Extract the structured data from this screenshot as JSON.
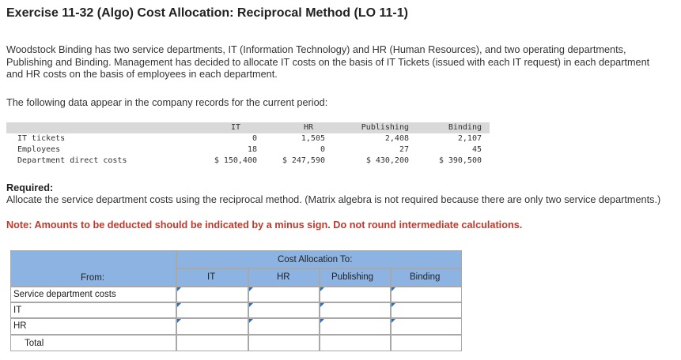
{
  "title": "Exercise 11-32 (Algo) Cost Allocation: Reciprocal Method (LO 11-1)",
  "intro": "Woodstock Binding has two service departments, IT (Information Technology) and HR (Human Resources), and two operating departments, Publishing and Binding. Management has decided to allocate IT costs on the basis of IT Tickets (issued with each IT request) in each department and HR costs on the basis of employees in each department.",
  "data_intro": "The following data appear in the company records for the current period:",
  "data_table": {
    "headers": [
      "IT",
      "HR",
      "Publishing",
      "Binding"
    ],
    "rows": [
      {
        "label": "IT tickets",
        "values": [
          "0",
          "1,505",
          "2,408",
          "2,107"
        ]
      },
      {
        "label": "Employees",
        "values": [
          "18",
          "0",
          "27",
          "45"
        ]
      },
      {
        "label": "Department direct costs",
        "values": [
          "$ 150,400",
          "$ 247,590",
          "$ 430,200",
          "$ 390,500"
        ]
      }
    ]
  },
  "required": {
    "heading": "Required:",
    "text": "Allocate the service department costs using the reciprocal method. (Matrix algebra is not required because there are only two service departments.)",
    "note": "Note: Amounts to be deducted should be indicated by a minus sign. Do not round intermediate calculations."
  },
  "answer_table": {
    "group_header": "Cost Allocation To:",
    "from_label": "From:",
    "columns": [
      "IT",
      "HR",
      "Publishing",
      "Binding"
    ],
    "rows": [
      {
        "label": "Service department costs",
        "values": [
          "",
          "",
          "",
          ""
        ]
      },
      {
        "label": "IT",
        "values": [
          "",
          "",
          "",
          ""
        ]
      },
      {
        "label": "HR",
        "values": [
          "",
          "",
          "",
          ""
        ]
      },
      {
        "label": "Total",
        "values": [
          "",
          "",
          "",
          ""
        ]
      }
    ]
  },
  "colors": {
    "header_blue": "#8db3e2",
    "from_cell": "#dce6f1",
    "note_red": "#c0392b",
    "input_corner": "#2f6fb7"
  }
}
